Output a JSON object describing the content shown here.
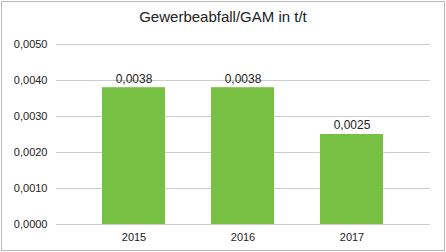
{
  "chart_data": {
    "type": "bar",
    "title": "Gewerbeabfall/GAM in t/t",
    "categories": [
      "2015",
      "2016",
      "2017"
    ],
    "values": [
      0.0038,
      0.0038,
      0.0025
    ],
    "value_labels": [
      "0,0038",
      "0,0038",
      "0,0025"
    ],
    "data_labels": true,
    "color": "#77c043",
    "ylim": [
      0,
      0.005
    ],
    "yticks": [
      {
        "value": 0,
        "label": "0,0000"
      },
      {
        "value": 0.001,
        "label": "0,0010"
      },
      {
        "value": 0.002,
        "label": "0,0020"
      },
      {
        "value": 0.003,
        "label": "0,0030"
      },
      {
        "value": 0.004,
        "label": "0,0040"
      },
      {
        "value": 0.005,
        "label": "0,0050"
      }
    ],
    "grid": true
  }
}
